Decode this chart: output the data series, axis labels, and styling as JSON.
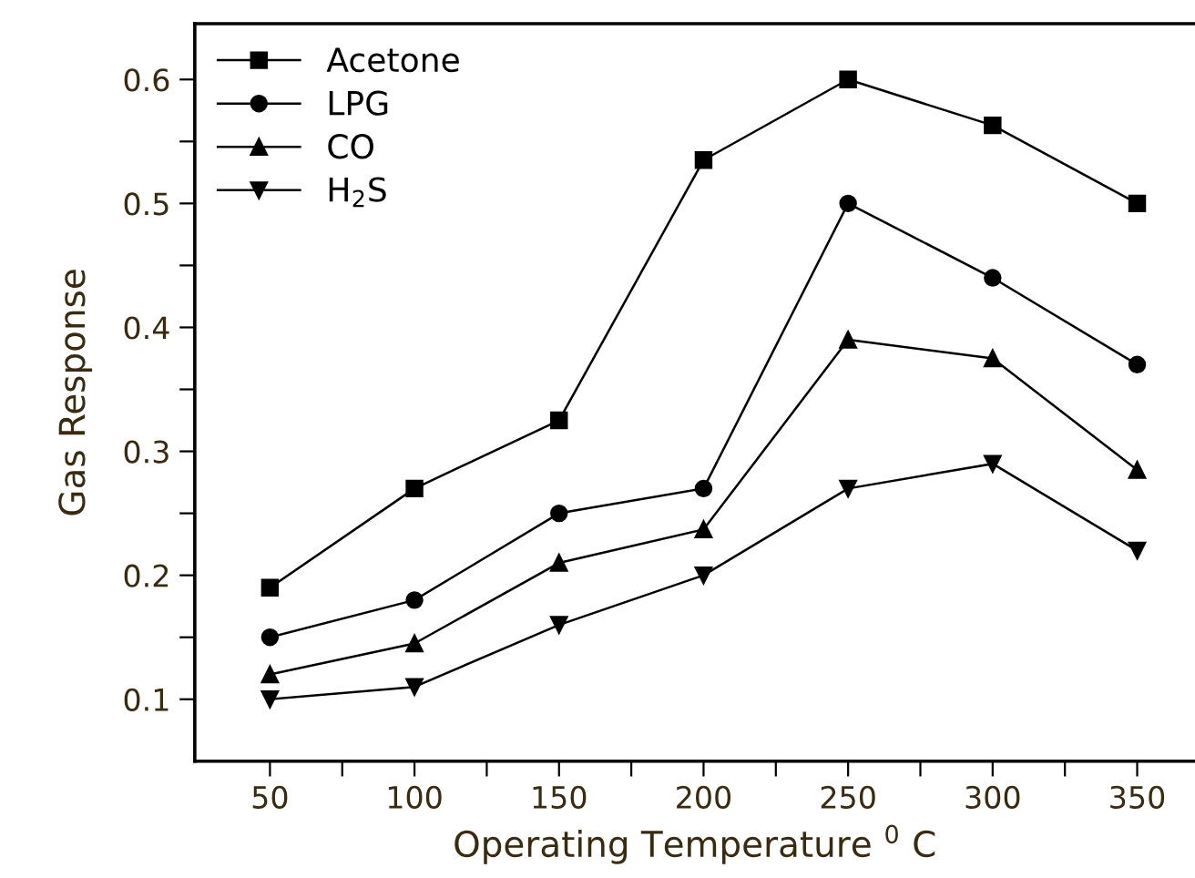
{
  "chart_data": {
    "type": "line",
    "xlabel": "Operating Temperature $^{0}$ C",
    "ylabel": "Gas Response",
    "x": [
      50,
      100,
      150,
      200,
      250,
      300,
      350
    ],
    "series": [
      {
        "name": "Acetone",
        "color": "#000000",
        "marker": "square",
        "values": [
          0.19,
          0.27,
          0.325,
          0.535,
          0.6,
          0.563,
          0.5
        ]
      },
      {
        "name": "LPG",
        "color": "#000000",
        "marker": "circle",
        "values": [
          0.15,
          0.18,
          0.25,
          0.27,
          0.5,
          0.44,
          0.37
        ]
      },
      {
        "name": "CO",
        "color": "#000000",
        "marker": "triangle",
        "values": [
          0.12,
          0.145,
          0.21,
          0.237,
          0.39,
          0.375,
          0.285
        ]
      },
      {
        "name": "H$_{2}$S",
        "color": "#000000",
        "marker": "triangle_down",
        "values": [
          0.1,
          0.11,
          0.16,
          0.2,
          0.27,
          0.29,
          0.22
        ]
      }
    ],
    "xlim": [
      24,
      370
    ],
    "ylim": [
      0.05,
      0.645
    ],
    "xticks": [
      50,
      {
        "value": 75,
        "label": null
      },
      100,
      {
        "value": 125,
        "label": null
      },
      150,
      {
        "value": 175,
        "label": null
      },
      200,
      {
        "value": 225,
        "label": null
      },
      250,
      {
        "value": 275,
        "label": null
      },
      300,
      {
        "value": 325,
        "label": null
      },
      350
    ],
    "yticks": [
      0.1,
      {
        "value": 0.15,
        "label": null
      },
      0.2,
      {
        "value": 0.25,
        "label": null
      },
      0.3,
      {
        "value": 0.35,
        "label": null
      },
      0.4,
      {
        "value": 0.45,
        "label": null
      },
      0.5,
      {
        "value": 0.55,
        "label": null
      },
      0.6
    ],
    "line_style": "solid",
    "grid": false,
    "legend": "top left"
  }
}
